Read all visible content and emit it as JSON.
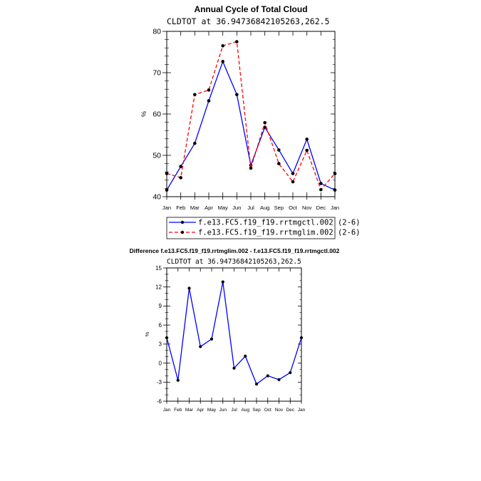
{
  "chart_data": [
    {
      "type": "line",
      "title": "Annual Cycle of Total Cloud",
      "subtitle": "CLDTOT at 36.94736842105263,262.5",
      "ylabel": "%",
      "xlabel": "",
      "ylim": [
        40,
        80
      ],
      "yticks": [
        "40",
        "50",
        "60",
        "70",
        "80"
      ],
      "categories": [
        "Jan",
        "Feb",
        "Mar",
        "Apr",
        "May",
        "Jun",
        "Jul",
        "Aug",
        "Sep",
        "Oct",
        "Nov",
        "Dec",
        "Jan"
      ],
      "grid": false,
      "legend_position": "bottom",
      "series": [
        {
          "name": "f.e13.FC5.f19_f19.rrtmgctl.002 (2-6)",
          "color": "#0000ff",
          "dash": "solid",
          "values": [
            41.6,
            47.3,
            52.9,
            63.2,
            72.7,
            64.7,
            47.6,
            56.8,
            51.3,
            45.6,
            53.9,
            43.2,
            41.6
          ]
        },
        {
          "name": "f.e13.FC5.f19_f19.rrtmglim.002 (2-6)",
          "color": "#ff0000",
          "dash": "dashed",
          "values": [
            45.6,
            44.6,
            64.7,
            65.8,
            76.5,
            77.5,
            46.9,
            57.9,
            48.0,
            43.6,
            51.2,
            41.7,
            45.6
          ]
        }
      ]
    },
    {
      "type": "line",
      "title": "Difference f.e13.FC5.f19_f19.rrtmglim.002 - f.e13.FC5.f19_f19.rrtmgctl.002",
      "subtitle": "CLDTOT at 36.94736842105263,262.5",
      "ylabel": "%",
      "xlabel": "",
      "ylim": [
        -6,
        15
      ],
      "yticks": [
        "-6",
        "-3",
        "0",
        "3",
        "6",
        "9",
        "12",
        "15"
      ],
      "categories": [
        "Jan",
        "Feb",
        "Mar",
        "Apr",
        "May",
        "Jun",
        "Jul",
        "Aug",
        "Sep",
        "Oct",
        "Nov",
        "Dec",
        "Jan"
      ],
      "grid": false,
      "series": [
        {
          "name": "",
          "color": "#0000ff",
          "dash": "solid",
          "values": [
            4.0,
            -2.7,
            11.8,
            2.6,
            3.8,
            12.8,
            -0.8,
            1.1,
            -3.3,
            -2.0,
            -2.6,
            -1.5,
            4.0
          ]
        }
      ]
    }
  ]
}
